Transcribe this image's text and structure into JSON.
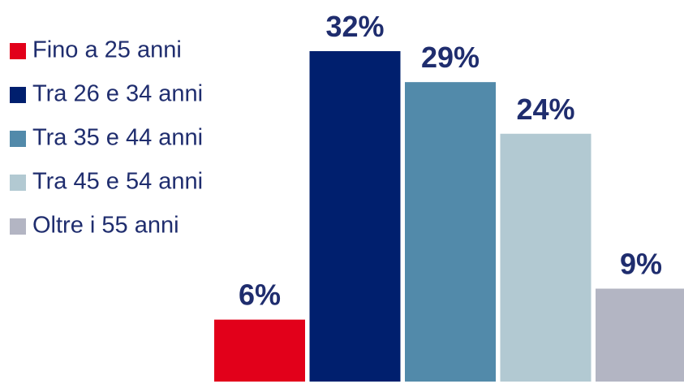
{
  "chart_data": {
    "type": "bar",
    "categories": [
      "Fino a 25 anni",
      "Tra 26 e 34 anni",
      "Tra 35 e 44 anni",
      "Tra 45 e 54 anni",
      "Oltre i 55 anni"
    ],
    "values": [
      6,
      32,
      29,
      24,
      9
    ],
    "value_labels": [
      "6%",
      "32%",
      "29%",
      "24%",
      "9%"
    ],
    "colors": [
      "#e2001a",
      "#001f6e",
      "#528aaa",
      "#b2c9d2",
      "#b3b5c3"
    ],
    "legend": "upper left"
  }
}
